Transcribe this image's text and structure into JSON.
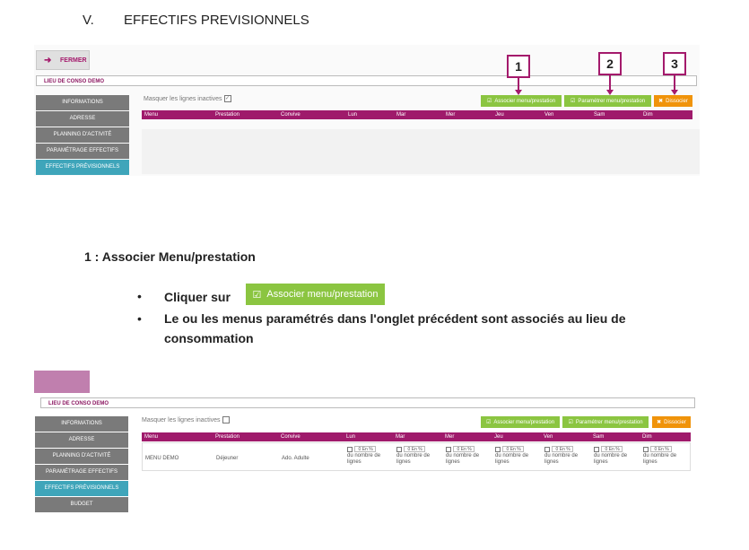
{
  "section": {
    "number": "V.",
    "title": "EFFECTIFS PREVISIONNELS"
  },
  "screenshot1": {
    "close_label": "FERMER",
    "site_label": "LIEU DE CONSO DEMO",
    "sidebar": [
      "INFORMATIONS",
      "ADRESSE",
      "PLANNING D'ACTIVITÉ",
      "PARAMÉTRAGE EFFECTIFS",
      "EFFECTIFS PRÉVISIONNELS"
    ],
    "mask_label": "Masquer les lignes inactives",
    "mask_check": "✓",
    "buttons": {
      "associate": "Associer menu/prestation",
      "configure": "Paramétrer menu/prestation",
      "dissociate": "Dissocier"
    },
    "columns": [
      "Menu",
      "Prestation",
      "Convive",
      "Lun",
      "Mar",
      "Mer",
      "Jeu",
      "Ven",
      "Sam",
      "Dim"
    ],
    "annotations": [
      "1",
      "2",
      "3"
    ]
  },
  "step": {
    "title": "1 : Associer Menu/prestation",
    "bullet1": "Cliquer sur",
    "inline_button": "Associer menu/prestation",
    "bullet2_line1": "Le ou les menus paramétrés dans l'onglet précédent sont associés au lieu de",
    "bullet2_line2": "consommation"
  },
  "screenshot2": {
    "site_label": "LIEU DE CONSO DEMO",
    "sidebar": [
      "INFORMATIONS",
      "ADRESSE",
      "PLANNING D'ACTIVITÉ",
      "PARAMÉTRAGE EFFECTIFS",
      "EFFECTIFS PRÉVISIONNELS",
      "BUDGET"
    ],
    "mask_label": "Masquer les lignes inactives",
    "buttons": {
      "associate": "Associer menu/prestation",
      "configure": "Paramétrer menu/prestation",
      "dissociate": "Dissocier"
    },
    "columns": [
      "Menu",
      "Prestation",
      "Convive",
      "Lun",
      "Mar",
      "Mer",
      "Jeu",
      "Ven",
      "Sam",
      "Dim"
    ],
    "row": {
      "menu": "MENU DEMO",
      "prestation": "Déjeuner",
      "convive": "Ado. Adulte"
    },
    "day_value": "0 En %",
    "day_line2": "du nombre de",
    "day_line3": "lignes"
  },
  "colors": {
    "brand": "#9f1a6b",
    "green": "#8bc541",
    "orange": "#f0930a",
    "active": "#3fa5ba"
  }
}
